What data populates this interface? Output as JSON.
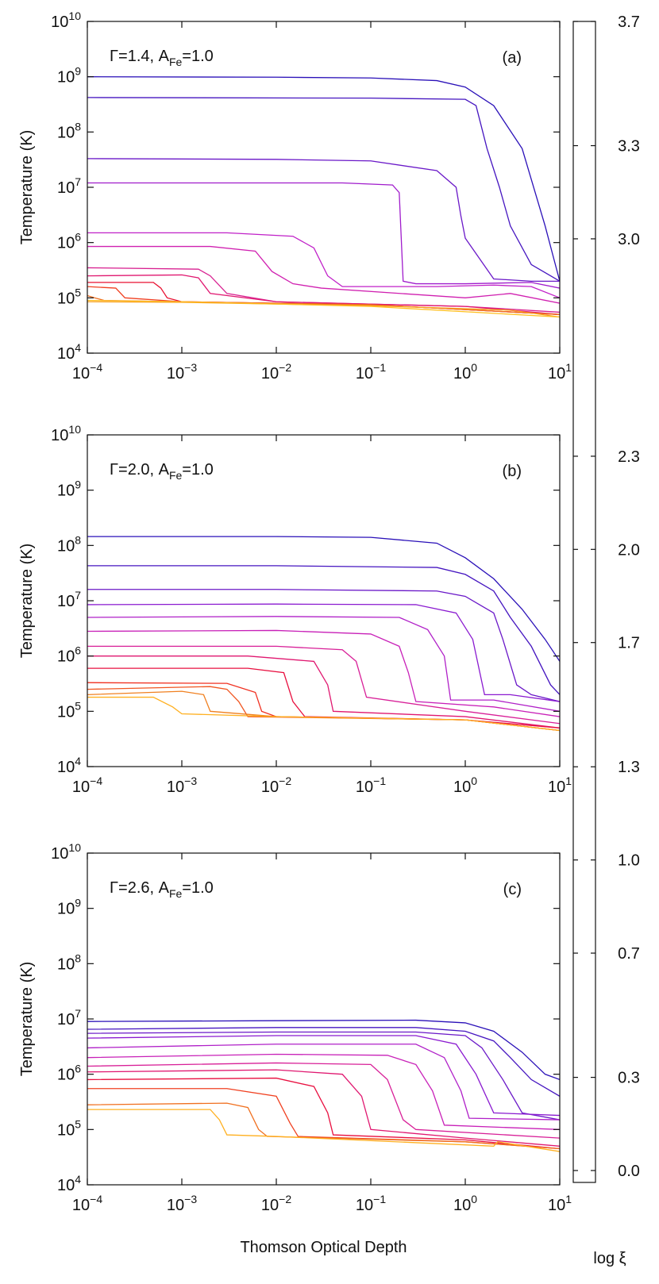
{
  "chart_data": [
    {
      "type": "line",
      "y_label": "Temperature (K)",
      "annotation": "Γ=1.4, A_Fe=1.0",
      "panel_label": "(a)",
      "xlog": true,
      "ylog": true,
      "xlim": [
        0.0001,
        10
      ],
      "ylim": [
        10000,
        10000000000
      ],
      "xticks": [
        {
          "value": 0.0001,
          "label": "10^−4"
        },
        {
          "value": 0.001,
          "label": "10^−3"
        },
        {
          "value": 0.01,
          "label": "10^−2"
        },
        {
          "value": 0.1,
          "label": "10^−1"
        },
        {
          "value": 1,
          "label": "10^0"
        },
        {
          "value": 10,
          "label": "10^1"
        }
      ],
      "yticks": [
        {
          "value": 10000,
          "label": "10^4"
        },
        {
          "value": 100000,
          "label": "10^5"
        },
        {
          "value": 1000000,
          "label": "10^6"
        },
        {
          "value": 10000000,
          "label": "10^7"
        },
        {
          "value": 100000000,
          "label": "10^8"
        },
        {
          "value": 1000000000,
          "label": "10^9"
        },
        {
          "value": 10000000000,
          "label": "10^10"
        }
      ],
      "series": [
        {
          "color": "#2a10b8",
          "x": [
            0.0001,
            0.01,
            0.1,
            0.5,
            1,
            2,
            4,
            7,
            10
          ],
          "values": [
            1000000000,
            980000000,
            950000000,
            850000000,
            650000000,
            300000000,
            50000000,
            2000000,
            200000
          ]
        },
        {
          "color": "#4515c0",
          "x": [
            0.0001,
            0.1,
            1,
            1.3,
            1.7,
            2.3,
            3,
            5,
            8,
            10
          ],
          "values": [
            420000000,
            410000000,
            390000000,
            300000000,
            50000000,
            10000000,
            2000000,
            400000,
            250000,
            200000
          ]
        },
        {
          "color": "#6a18c8",
          "x": [
            0.0001,
            0.01,
            0.1,
            0.5,
            0.8,
            0.9,
            1,
            2,
            5,
            10
          ],
          "values": [
            33000000,
            32000000,
            30000000,
            20000000,
            10000000,
            3000000,
            1200000,
            220000,
            200000,
            200000
          ]
        },
        {
          "color": "#a01ccc",
          "x": [
            0.0001,
            0.05,
            0.17,
            0.2,
            0.22,
            0.3,
            1,
            5,
            10
          ],
          "values": [
            12000000,
            12000000,
            11000000,
            8000000,
            200000,
            180000,
            180000,
            190000,
            150000
          ]
        },
        {
          "color": "#c020c8",
          "x": [
            0.0001,
            0.003,
            0.015,
            0.025,
            0.035,
            0.05,
            0.5,
            2,
            5,
            10
          ],
          "values": [
            1500000,
            1500000,
            1300000,
            800000,
            250000,
            160000,
            160000,
            170000,
            160000,
            100000
          ]
        },
        {
          "color": "#d020b0",
          "x": [
            0.0001,
            0.002,
            0.006,
            0.009,
            0.015,
            0.03,
            1,
            3,
            10
          ],
          "values": [
            850000,
            850000,
            700000,
            300000,
            180000,
            150000,
            100000,
            120000,
            80000
          ]
        },
        {
          "color": "#d82090",
          "x": [
            0.0001,
            0.0015,
            0.002,
            0.003,
            0.01,
            1,
            10
          ],
          "values": [
            350000,
            330000,
            250000,
            120000,
            85000,
            70000,
            55000
          ]
        },
        {
          "color": "#e01870",
          "x": [
            0.0001,
            0.001,
            0.0015,
            0.002,
            0.01,
            1,
            10
          ],
          "values": [
            250000,
            260000,
            230000,
            120000,
            85000,
            70000,
            50000
          ]
        },
        {
          "color": "#e81030",
          "x": [
            0.0001,
            0.0005,
            0.0006,
            0.0007,
            0.001,
            0.1,
            10
          ],
          "values": [
            190000,
            190000,
            150000,
            100000,
            85000,
            75000,
            50000
          ]
        },
        {
          "color": "#f04020",
          "x": [
            0.0001,
            0.0002,
            0.00025,
            0.001,
            0.1,
            10
          ],
          "values": [
            160000,
            150000,
            100000,
            85000,
            75000,
            50000
          ]
        },
        {
          "color": "#f07020",
          "x": [
            0.0001,
            0.00012,
            0.00015,
            0.001,
            0.1,
            10
          ],
          "values": [
            110000,
            100000,
            90000,
            85000,
            75000,
            50000
          ]
        },
        {
          "color": "#f8a020",
          "x": [
            0.0001,
            0.001,
            0.1,
            3,
            10
          ],
          "values": [
            85000,
            83000,
            72000,
            60000,
            45000
          ]
        },
        {
          "color": "#ffc020",
          "x": [
            0.0001,
            0.001,
            0.1,
            10
          ],
          "values": [
            90000,
            85000,
            70000,
            45000
          ]
        }
      ]
    },
    {
      "type": "line",
      "y_label": "Temperature (K)",
      "annotation": "Γ=2.0, A_Fe=1.0",
      "panel_label": "(b)",
      "xlog": true,
      "ylog": true,
      "xlim": [
        0.0001,
        10
      ],
      "ylim": [
        10000,
        10000000000
      ],
      "xticks": [
        {
          "value": 0.0001,
          "label": "10^−4"
        },
        {
          "value": 0.001,
          "label": "10^−3"
        },
        {
          "value": 0.01,
          "label": "10^−2"
        },
        {
          "value": 0.1,
          "label": "10^−1"
        },
        {
          "value": 1,
          "label": "10^0"
        },
        {
          "value": 10,
          "label": "10^1"
        }
      ],
      "yticks": [
        {
          "value": 10000,
          "label": "10^4"
        },
        {
          "value": 100000,
          "label": "10^5"
        },
        {
          "value": 1000000,
          "label": "10^6"
        },
        {
          "value": 10000000,
          "label": "10^7"
        },
        {
          "value": 100000000,
          "label": "10^8"
        },
        {
          "value": 1000000000,
          "label": "10^9"
        },
        {
          "value": 10000000000,
          "label": "10^10"
        }
      ],
      "series": [
        {
          "color": "#2a10b8",
          "x": [
            0.0001,
            0.01,
            0.1,
            0.5,
            1,
            2,
            4,
            7,
            10
          ],
          "values": [
            145000000,
            145000000,
            140000000,
            110000000,
            60000000,
            25000000,
            7000000,
            2000000,
            800000
          ]
        },
        {
          "color": "#4515c0",
          "x": [
            0.0001,
            0.01,
            0.5,
            1,
            2,
            3,
            5,
            8,
            10
          ],
          "values": [
            43000000,
            43000000,
            40000000,
            30000000,
            15000000,
            5000000,
            1500000,
            300000,
            200000
          ]
        },
        {
          "color": "#6a18c8",
          "x": [
            0.0001,
            0.01,
            0.5,
            1,
            2,
            2.5,
            3.5,
            5,
            10
          ],
          "values": [
            16000000,
            16000000,
            15000000,
            12000000,
            6000000,
            2000000,
            300000,
            200000,
            150000
          ]
        },
        {
          "color": "#8a1ad0",
          "x": [
            0.0001,
            0.01,
            0.3,
            0.8,
            1.2,
            1.6,
            3,
            10
          ],
          "values": [
            8500000,
            8700000,
            8500000,
            6000000,
            2000000,
            200000,
            200000,
            150000
          ]
        },
        {
          "color": "#b020c8",
          "x": [
            0.0001,
            0.01,
            0.2,
            0.4,
            0.6,
            0.7,
            2,
            10
          ],
          "values": [
            5000000,
            5200000,
            5000000,
            3000000,
            1000000,
            160000,
            160000,
            100000
          ]
        },
        {
          "color": "#c820b8",
          "x": [
            0.0001,
            0.01,
            0.1,
            0.2,
            0.25,
            0.3,
            2,
            10
          ],
          "values": [
            2800000,
            2900000,
            2500000,
            1500000,
            500000,
            150000,
            120000,
            80000
          ]
        },
        {
          "color": "#d82098",
          "x": [
            0.0001,
            0.01,
            0.05,
            0.07,
            0.09,
            1,
            10
          ],
          "values": [
            1500000,
            1500000,
            1300000,
            800000,
            180000,
            100000,
            60000
          ]
        },
        {
          "color": "#e01870",
          "x": [
            0.0001,
            0.005,
            0.025,
            0.035,
            0.04,
            1,
            10
          ],
          "values": [
            1000000,
            1000000,
            800000,
            300000,
            100000,
            80000,
            50000
          ]
        },
        {
          "color": "#e81040",
          "x": [
            0.0001,
            0.005,
            0.012,
            0.015,
            0.02,
            1,
            10
          ],
          "values": [
            600000,
            600000,
            500000,
            150000,
            80000,
            70000,
            50000
          ]
        },
        {
          "color": "#f03020",
          "x": [
            0.0001,
            0.003,
            0.006,
            0.007,
            0.01,
            1,
            10
          ],
          "values": [
            330000,
            320000,
            220000,
            100000,
            80000,
            70000,
            45000
          ]
        },
        {
          "color": "#f05520",
          "x": [
            0.0001,
            0.002,
            0.003,
            0.004,
            0.005,
            1,
            10
          ],
          "values": [
            250000,
            280000,
            250000,
            150000,
            80000,
            70000,
            45000
          ]
        },
        {
          "color": "#f08020",
          "x": [
            0.0001,
            0.001,
            0.0017,
            0.002,
            0.01,
            1,
            10
          ],
          "values": [
            200000,
            230000,
            200000,
            100000,
            80000,
            70000,
            45000
          ]
        },
        {
          "color": "#ffb020",
          "x": [
            0.0001,
            0.0005,
            0.0008,
            0.001,
            0.01,
            1,
            10
          ],
          "values": [
            180000,
            180000,
            120000,
            90000,
            80000,
            70000,
            45000
          ]
        }
      ]
    },
    {
      "type": "line",
      "y_label": "Temperature (K)",
      "x_label": "Thomson Optical Depth",
      "annotation": "Γ=2.6, A_Fe=1.0",
      "panel_label": "(c)",
      "xlog": true,
      "ylog": true,
      "xlim": [
        0.0001,
        10
      ],
      "ylim": [
        10000,
        10000000000
      ],
      "xticks": [
        {
          "value": 0.0001,
          "label": "10^−4"
        },
        {
          "value": 0.001,
          "label": "10^−3"
        },
        {
          "value": 0.01,
          "label": "10^−2"
        },
        {
          "value": 0.1,
          "label": "10^−1"
        },
        {
          "value": 1,
          "label": "10^0"
        },
        {
          "value": 10,
          "label": "10^1"
        }
      ],
      "yticks": [
        {
          "value": 10000,
          "label": "10^4"
        },
        {
          "value": 100000,
          "label": "10^5"
        },
        {
          "value": 1000000,
          "label": "10^6"
        },
        {
          "value": 10000000,
          "label": "10^7"
        },
        {
          "value": 100000000,
          "label": "10^8"
        },
        {
          "value": 1000000000,
          "label": "10^9"
        },
        {
          "value": 10000000000,
          "label": "10^10"
        }
      ],
      "series": [
        {
          "color": "#2a10b8",
          "x": [
            0.0001,
            0.01,
            0.3,
            1,
            2,
            4,
            7,
            10
          ],
          "values": [
            9000000,
            9300000,
            9500000,
            8500000,
            6000000,
            2500000,
            1000000,
            800000
          ]
        },
        {
          "color": "#4515c0",
          "x": [
            0.0001,
            0.01,
            0.3,
            1,
            2,
            3,
            5,
            10
          ],
          "values": [
            6500000,
            7000000,
            7000000,
            6000000,
            4000000,
            2000000,
            800000,
            400000
          ]
        },
        {
          "color": "#6a18c8",
          "x": [
            0.0001,
            0.01,
            0.3,
            1,
            1.5,
            2.5,
            4,
            10
          ],
          "values": [
            5500000,
            5800000,
            5800000,
            5000000,
            3000000,
            800000,
            200000,
            150000
          ]
        },
        {
          "color": "#8a1ad0",
          "x": [
            0.0001,
            0.01,
            0.3,
            0.8,
            1.3,
            2,
            10
          ],
          "values": [
            4500000,
            5000000,
            5000000,
            3500000,
            1000000,
            200000,
            180000
          ]
        },
        {
          "color": "#b020c8",
          "x": [
            0.0001,
            0.01,
            0.3,
            0.6,
            0.9,
            1.1,
            10
          ],
          "values": [
            3000000,
            3500000,
            3500000,
            2000000,
            500000,
            160000,
            150000
          ]
        },
        {
          "color": "#c820b8",
          "x": [
            0.0001,
            0.01,
            0.15,
            0.3,
            0.45,
            0.6,
            10
          ],
          "values": [
            2000000,
            2300000,
            2200000,
            1500000,
            500000,
            120000,
            100000
          ]
        },
        {
          "color": "#d82098",
          "x": [
            0.0001,
            0.01,
            0.1,
            0.15,
            0.22,
            0.3,
            10
          ],
          "values": [
            1400000,
            1600000,
            1500000,
            800000,
            150000,
            100000,
            70000
          ]
        },
        {
          "color": "#e01870",
          "x": [
            0.0001,
            0.01,
            0.05,
            0.08,
            0.1,
            1,
            10
          ],
          "values": [
            1100000,
            1200000,
            1000000,
            400000,
            100000,
            70000,
            50000
          ]
        },
        {
          "color": "#e81040",
          "x": [
            0.0001,
            0.01,
            0.025,
            0.035,
            0.04,
            1,
            10
          ],
          "values": [
            800000,
            850000,
            600000,
            200000,
            80000,
            65000,
            45000
          ]
        },
        {
          "color": "#f04020",
          "x": [
            0.0001,
            0.003,
            0.01,
            0.014,
            0.017,
            1,
            10
          ],
          "values": [
            550000,
            550000,
            400000,
            130000,
            75000,
            60000,
            45000
          ]
        },
        {
          "color": "#f07020",
          "x": [
            0.0001,
            0.003,
            0.005,
            0.0065,
            0.008,
            1,
            10
          ],
          "values": [
            280000,
            300000,
            250000,
            100000,
            75000,
            60000,
            45000
          ]
        },
        {
          "color": "#ffb020",
          "x": [
            0.0001,
            0.002,
            0.0025,
            0.003,
            0.01,
            2,
            2.2,
            10
          ],
          "values": [
            230000,
            230000,
            150000,
            80000,
            75000,
            50000,
            60000,
            40000
          ]
        }
      ]
    }
  ],
  "colorbar": {
    "label": "log ξ",
    "lim": [
      0,
      3.7
    ],
    "ticks": [
      {
        "value": 0,
        "label": "0.0"
      },
      0.3,
      0.7,
      {
        "value": 1,
        "label": "1.0"
      },
      1.3,
      1.7,
      {
        "value": 2,
        "label": "2.0"
      },
      2.3,
      {
        "value": 3,
        "label": "3.0"
      },
      3.3,
      3.7
    ],
    "colors": [
      "#ffc020",
      "#f88020",
      "#f04020",
      "#e81020",
      "#e01850",
      "#d81c90",
      "#d020c0",
      "#b020d0",
      "#8020d0",
      "#5018c8",
      "#2010b0"
    ]
  }
}
